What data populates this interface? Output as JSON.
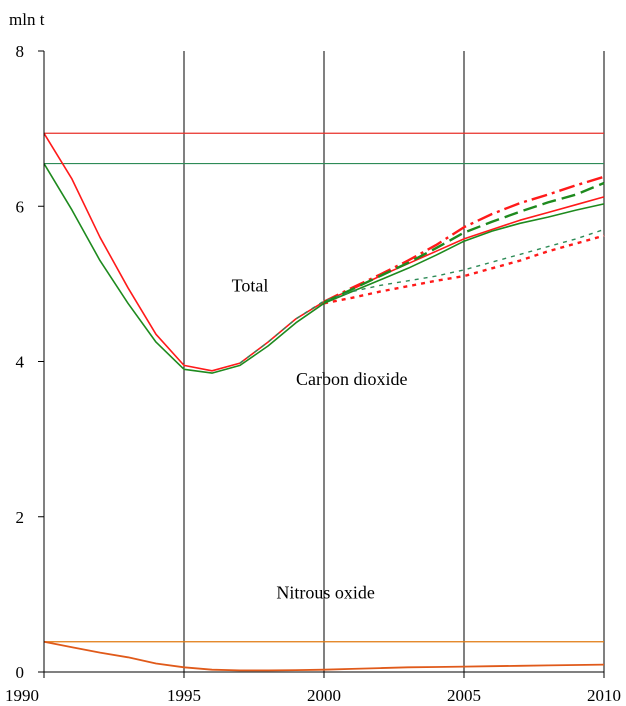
{
  "chart_data": {
    "type": "line",
    "ylabel": "mln  t",
    "xlim": [
      1990,
      2010
    ],
    "ylim": [
      0,
      8
    ],
    "x_ticks": [
      "1990",
      "1995",
      "2000",
      "2005",
      "2010"
    ],
    "y_ticks": [
      "0",
      "2",
      "4",
      "6",
      "8"
    ],
    "vertical_grid_at": [
      1995,
      2000,
      2005,
      2010
    ],
    "annotations": [
      {
        "text": "Total",
        "x": 1996.7,
        "y": 4.9
      },
      {
        "text": "Carbon dioxide",
        "x": 1999.0,
        "y": 3.7
      },
      {
        "text": "Nitrous  oxide",
        "x": 1998.3,
        "y": 0.95
      }
    ],
    "reference_lines": [
      {
        "y": 6.94,
        "color": "#e8302a"
      },
      {
        "y": 6.55,
        "color": "#2e8b57"
      },
      {
        "y": 0.39,
        "color": "#e07a10"
      }
    ],
    "series": [
      {
        "color": "#ff1a1a",
        "style": "solid",
        "width": 1.6,
        "x": [
          1990,
          1991,
          1992,
          1993,
          1994,
          1995,
          1996,
          1997,
          1998,
          1999,
          2000,
          2001,
          2002,
          2003,
          2004,
          2005,
          2006,
          2007,
          2008,
          2009,
          2010
        ],
        "y": [
          6.94,
          6.35,
          5.6,
          4.95,
          4.35,
          3.95,
          3.88,
          3.98,
          4.25,
          4.55,
          4.77,
          4.93,
          5.1,
          5.26,
          5.42,
          5.58,
          5.7,
          5.82,
          5.92,
          6.02,
          6.12
        ]
      },
      {
        "color": "#ff1a1a",
        "style": "dashdot",
        "width": 2.4,
        "x": [
          2000,
          2001,
          2002,
          2003,
          2004,
          2005,
          2006,
          2007,
          2008,
          2009,
          2010
        ],
        "y": [
          4.77,
          4.95,
          5.12,
          5.3,
          5.5,
          5.73,
          5.9,
          6.04,
          6.15,
          6.27,
          6.38
        ]
      },
      {
        "color": "#ff1a1a",
        "style": "dotted",
        "width": 2.4,
        "x": [
          2000,
          2001,
          2002,
          2003,
          2004,
          2005,
          2006,
          2007,
          2008,
          2009,
          2010
        ],
        "y": [
          4.75,
          4.82,
          4.9,
          4.97,
          5.04,
          5.1,
          5.2,
          5.3,
          5.42,
          5.52,
          5.62
        ]
      },
      {
        "color": "#1e8a1e",
        "style": "solid",
        "width": 1.6,
        "x": [
          1990,
          1991,
          1992,
          1993,
          1994,
          1995,
          1996,
          1997,
          1998,
          1999,
          2000,
          2001,
          2002,
          2003,
          2004,
          2005,
          2006,
          2007,
          2008,
          2009,
          2010
        ],
        "y": [
          6.55,
          5.95,
          5.3,
          4.75,
          4.25,
          3.9,
          3.85,
          3.95,
          4.2,
          4.5,
          4.75,
          4.9,
          5.05,
          5.2,
          5.37,
          5.55,
          5.68,
          5.78,
          5.86,
          5.95,
          6.03
        ]
      },
      {
        "color": "#1e8a1e",
        "style": "dashed",
        "width": 2.4,
        "x": [
          2000,
          2001,
          2002,
          2003,
          2004,
          2005,
          2006,
          2007,
          2008,
          2009,
          2010
        ],
        "y": [
          4.76,
          4.93,
          5.1,
          5.27,
          5.46,
          5.66,
          5.8,
          5.93,
          6.05,
          6.15,
          6.3
        ]
      },
      {
        "color": "#2e8b57",
        "style": "dotted",
        "width": 1.4,
        "x": [
          1997,
          1998,
          1999,
          2000,
          2001,
          2002,
          2003,
          2004,
          2005,
          2006,
          2007,
          2008,
          2009,
          2010
        ],
        "y": [
          3.98,
          4.25,
          4.55,
          4.78,
          4.9,
          4.98,
          5.04,
          5.1,
          5.18,
          5.28,
          5.38,
          5.48,
          5.58,
          5.7
        ]
      },
      {
        "color": "#e05a1a",
        "style": "solid",
        "width": 1.8,
        "x": [
          1990,
          1991,
          1992,
          1993,
          1994,
          1995,
          1996,
          1997,
          1998,
          1999,
          2000,
          2001,
          2002,
          2003,
          2004,
          2005,
          2006,
          2007,
          2008,
          2009,
          2010
        ],
        "y": [
          0.39,
          0.32,
          0.25,
          0.19,
          0.11,
          0.06,
          0.03,
          0.02,
          0.02,
          0.025,
          0.03,
          0.04,
          0.05,
          0.06,
          0.065,
          0.07,
          0.075,
          0.08,
          0.085,
          0.09,
          0.095
        ]
      }
    ]
  }
}
